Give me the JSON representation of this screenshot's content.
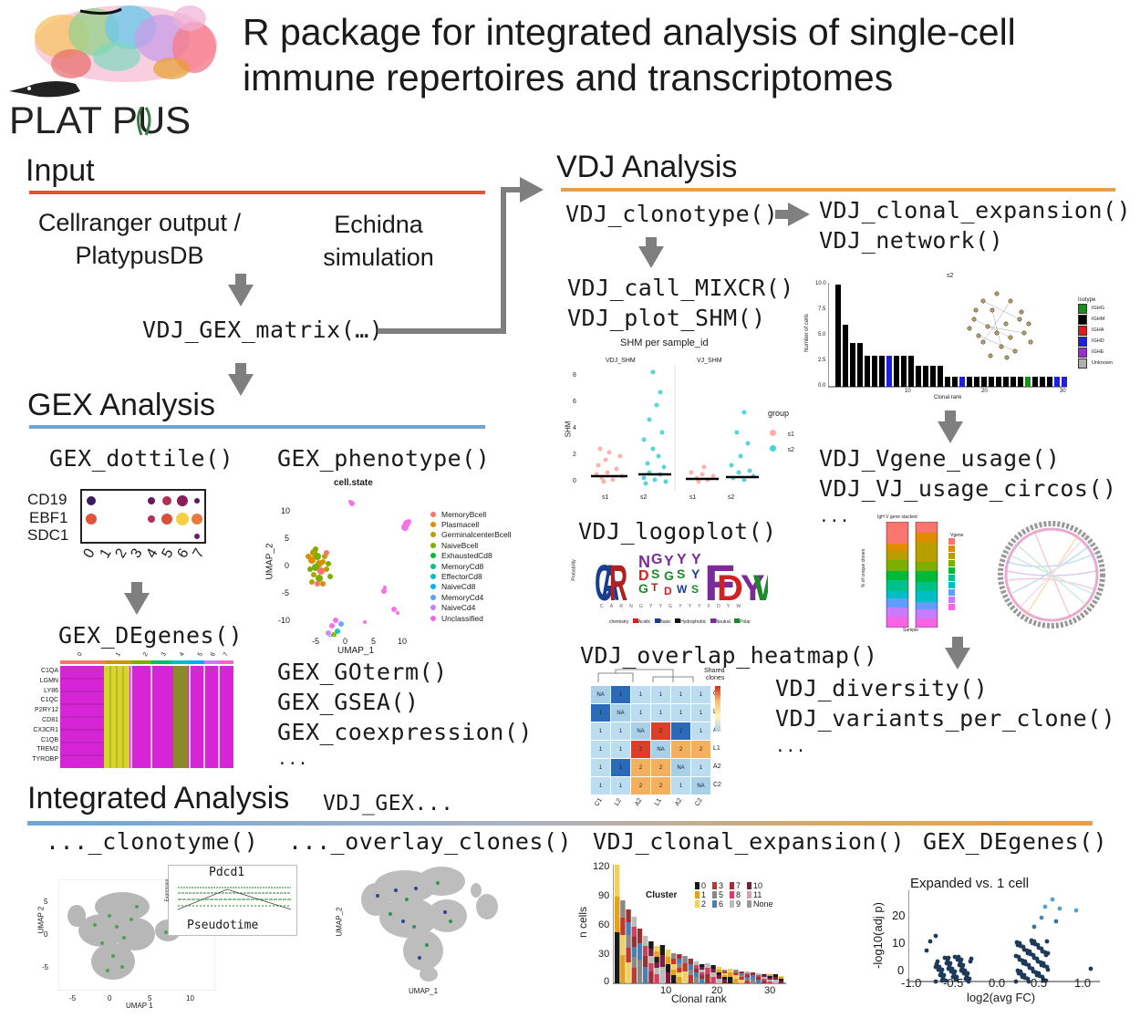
{
  "header": {
    "logo_text": "PLAT PUS",
    "title_line1": "R package for integrated analysis of single-cell",
    "title_line2": "immune repertoires and transcriptomes"
  },
  "colors": {
    "input_bar": "#e8503a",
    "gex_bar": "#6fa6d8",
    "vdj_bar": "#e6a04a",
    "arrow": "#7f7f7f"
  },
  "input": {
    "heading": "Input",
    "source1_line1": "Cellranger output /",
    "source1_line2": "PlatypusDB",
    "source2_line1": "Echidna",
    "source2_line2": "simulation",
    "matrix_fn": "VDJ_GEX_matrix(…)"
  },
  "gex": {
    "heading": "GEX Analysis",
    "dottile": "GEX_dottile()",
    "phenotype": "GEX_phenotype()",
    "degenes": "GEX_DEgenes()",
    "goterm": "GEX_GOterm()",
    "gsea": "GEX_GSEA()",
    "coexpression": "GEX_coexpression()",
    "more": "...",
    "dottile_genes": [
      "CD19",
      "EBF1",
      "SDC1"
    ],
    "dottile_clusters": [
      "0",
      "1",
      "2",
      "3",
      "4",
      "5",
      "6",
      "7"
    ],
    "phenotype_plot": {
      "title": "cell.state",
      "xlabel": "UMAP_1",
      "ylabel": "UMAP_2",
      "yticks": [
        "10",
        "5",
        "0",
        "-5",
        "-10"
      ],
      "xticks": [
        "-5",
        "0",
        "5",
        "10"
      ],
      "legend": [
        {
          "label": "MemoryBcell",
          "color": "#f8766d"
        },
        {
          "label": "Plasmacell",
          "color": "#e08b00"
        },
        {
          "label": "GerminalcenterBcell",
          "color": "#b79f00"
        },
        {
          "label": "NaiveBcell",
          "color": "#7cae00"
        },
        {
          "label": "ExhaustedCd8",
          "color": "#00ba38"
        },
        {
          "label": "MemoryCd8",
          "color": "#00c08b"
        },
        {
          "label": "EffectorCd8",
          "color": "#00bfc4"
        },
        {
          "label": "NaiveCd8",
          "color": "#00b4f0"
        },
        {
          "label": "MemoryCd4",
          "color": "#619cff"
        },
        {
          "label": "NaiveCd4",
          "color": "#c77cff"
        },
        {
          "label": "Unclassified",
          "color": "#f564e3"
        }
      ]
    },
    "heatmap_genes": [
      "C1QA",
      "LGMN",
      "LY86",
      "C1QC",
      "P2RY12",
      "CD81",
      "CX3CR1",
      "C1QB",
      "TREM2",
      "TYROBP"
    ],
    "heatmap_clusters": [
      "0",
      "1",
      "2",
      "3",
      "4",
      "5",
      "6",
      "7"
    ]
  },
  "vdj": {
    "heading": "VDJ Analysis",
    "clonotype": "VDJ_clonotype()",
    "clonal_expansion": "VDJ_clonal_expansion()",
    "network": "VDJ_network()",
    "call_mixcr": "VDJ_call_MIXCR()",
    "plot_shm": "VDJ_plot_SHM()",
    "logoplot": "VDJ_logoplot()",
    "vgene_usage": "VDJ_Vgene_usage()",
    "vj_usage_circos": "VDJ_VJ_usage_circos()",
    "more1": "...",
    "overlap_heatmap": "VDJ_overlap_heatmap()",
    "diversity": "VDJ_diversity()",
    "variants_per_clone": "VDJ_variants_per_clone()",
    "more2": "...",
    "shm_plot": {
      "title": "SHM per sample_id",
      "panel1": "VDJ_SHM",
      "panel2": "VJ_SHM",
      "ylabel": "SHM",
      "yticks": [
        "8",
        "6",
        "4",
        "2",
        "0"
      ],
      "xticks": [
        "s1",
        "s2",
        "s1",
        "s2"
      ],
      "legend_title": "group",
      "legend": [
        {
          "label": "s1",
          "color": "#f8766d"
        },
        {
          "label": "s2",
          "color": "#00bfc4"
        }
      ]
    },
    "expansion_plot": {
      "title": "s2",
      "ylabel": "Number of cells",
      "xlabel": "Clonal rank",
      "yticks": [
        "10.0",
        "7.5",
        "5.0",
        "2.5",
        "0.0"
      ],
      "xticks": [
        "10",
        "20",
        "30"
      ],
      "legend_title": "Isotype",
      "legend": [
        {
          "label": "IGHG",
          "color": "#1a8f1a"
        },
        {
          "label": "IGHM",
          "color": "#000000"
        },
        {
          "label": "IGHA",
          "color": "#e31a1c"
        },
        {
          "label": "IGHD",
          "color": "#1f1fe0"
        },
        {
          "label": "IGHE",
          "color": "#9b2fd1"
        },
        {
          "label": "Unknown",
          "color": "#b0b0b0"
        }
      ]
    },
    "logo_plot": {
      "ylabel": "Probability",
      "letters": "CARNGYYGYYYFDYW",
      "legend_title": "chemistry",
      "legend": [
        "Acidic",
        "Basic",
        "Hydrophobic",
        "Neutral",
        "Polar"
      ]
    },
    "vgene_plot": {
      "title": "IgH V gene stacked",
      "xlabel": "Sample",
      "ylabel": "% of unique clones",
      "legend_title": "Vgene"
    },
    "overlap_plot": {
      "legend_title_line1": "Shared",
      "legend_title_line2": "clones",
      "row_labels": [
        "C1",
        "L2",
        "A1",
        "L1",
        "A2",
        "C2"
      ],
      "col_labels": [
        "C1",
        "L2",
        "A2",
        "L1",
        "A2",
        "C2"
      ],
      "cells": [
        [
          "NA",
          "1",
          "1",
          "1",
          "1",
          "1"
        ],
        [
          "1",
          "NA",
          "1",
          "1",
          "1",
          "1"
        ],
        [
          "1",
          "1",
          "NA",
          "2",
          "2",
          "1"
        ],
        [
          "1",
          "1",
          "2",
          "NA",
          "2",
          "2"
        ],
        [
          "1",
          "1",
          "2",
          "2",
          "NA",
          "1"
        ],
        [
          "1",
          "1",
          "2",
          "2",
          "1",
          "NA"
        ]
      ]
    }
  },
  "integrated": {
    "heading": "Integrated Analysis",
    "prefix": "VDJ_GEX...",
    "clonotyme": "..._clonotyme()",
    "overlay_clones": "..._overlay_clones()",
    "clonal_expansion": "VDJ_clonal_expansion()",
    "degenes": "GEX_DEgenes()",
    "pseudotime": {
      "gene": "Pdcd1",
      "label": "Pseudotime",
      "xlabel": "UMAP 1",
      "ylabel": "UMAP 2",
      "xticks": [
        "-5",
        "0",
        "5",
        "10"
      ],
      "yticks": [
        "5",
        "0",
        "-5"
      ],
      "expr_label": "Expression"
    },
    "overlay_plot": {
      "xlabel": "UMAP_1",
      "ylabel": "UMAP_2"
    },
    "clone_plot": {
      "ylabel": "n cells",
      "xlabel": "Clonal rank",
      "yticks": [
        "120",
        "90",
        "60",
        "30",
        "0"
      ],
      "xticks": [
        "10",
        "20",
        "30"
      ],
      "legend_title": "Cluster",
      "legend": [
        {
          "label": "0",
          "color": "#1a1a1a"
        },
        {
          "label": "1",
          "color": "#e6a020"
        },
        {
          "label": "2",
          "color": "#f0d060"
        },
        {
          "label": "3",
          "color": "#c0392b"
        },
        {
          "label": "5",
          "color": "#888888"
        },
        {
          "label": "6",
          "color": "#4a7fb5"
        },
        {
          "label": "7",
          "color": "#a03030"
        },
        {
          "label": "8",
          "color": "#d04060"
        },
        {
          "label": "9",
          "color": "#bbbbbb"
        },
        {
          "label": "10",
          "color": "#7a1f3d"
        },
        {
          "label": "11",
          "color": "#d8a0b0"
        },
        {
          "label": "None",
          "color": "#999999"
        }
      ]
    },
    "volcano": {
      "title": "Expanded vs. 1 cell",
      "ylabel": "-log10(adj p)",
      "xlabel": "log2(avg FC)",
      "xticks": [
        "-1.0",
        "-0.5",
        "0.0",
        "0.5",
        "1.0"
      ],
      "yticks": [
        "20",
        "10",
        "0"
      ]
    }
  }
}
